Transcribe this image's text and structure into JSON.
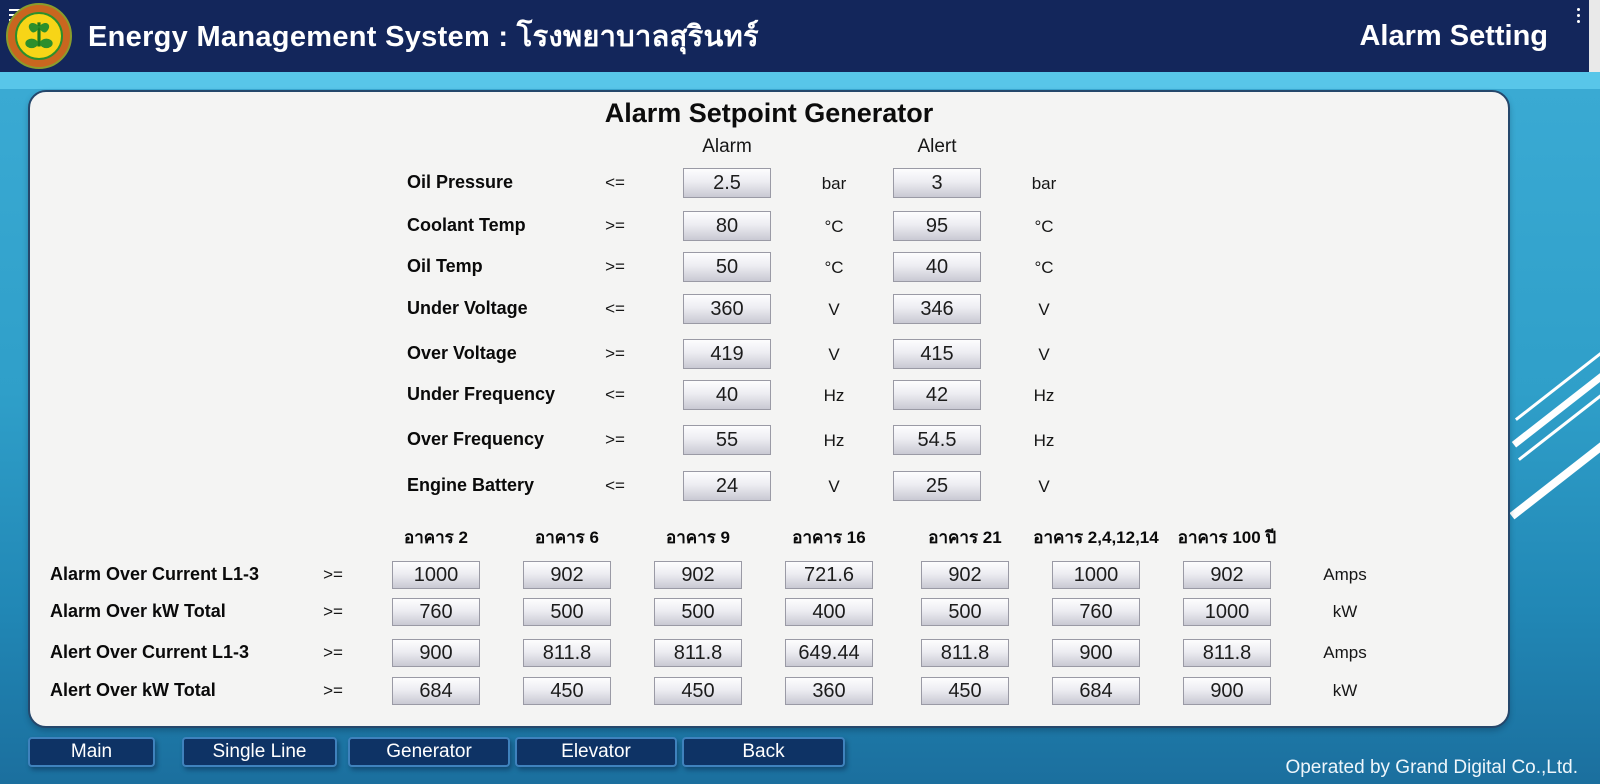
{
  "header": {
    "title": "Energy Management System : โรงพยาบาลสุรินทร์",
    "page_label": "Alarm Setting"
  },
  "panel": {
    "title": "Alarm Setpoint Generator",
    "columns": {
      "alarm": "Alarm",
      "alert": "Alert"
    },
    "setpoints": [
      {
        "label": "Oil Pressure",
        "op": "<=",
        "alarm": "2.5",
        "alarm_unit": "bar",
        "alert": "3",
        "alert_unit": "bar"
      },
      {
        "label": "Coolant Temp",
        "op": ">=",
        "alarm": "80",
        "alarm_unit": "°C",
        "alert": "95",
        "alert_unit": "°C"
      },
      {
        "label": "Oil Temp",
        "op": ">=",
        "alarm": "50",
        "alarm_unit": "°C",
        "alert": "40",
        "alert_unit": "°C"
      },
      {
        "label": "Under Voltage",
        "op": "<=",
        "alarm": "360",
        "alarm_unit": "V",
        "alert": "346",
        "alert_unit": "V"
      },
      {
        "label": "Over Voltage",
        "op": ">=",
        "alarm": "419",
        "alarm_unit": "V",
        "alert": "415",
        "alert_unit": "V"
      },
      {
        "label": "Under Frequency",
        "op": "<=",
        "alarm": "40",
        "alarm_unit": "Hz",
        "alert": "42",
        "alert_unit": "Hz"
      },
      {
        "label": "Over Frequency",
        "op": ">=",
        "alarm": "55",
        "alarm_unit": "Hz",
        "alert": "54.5",
        "alert_unit": "Hz"
      },
      {
        "label": "Engine Battery",
        "op": "<=",
        "alarm": "24",
        "alarm_unit": "V",
        "alert": "25",
        "alert_unit": "V"
      }
    ],
    "buildings": [
      "อาคาร 2",
      "อาคาร 6",
      "อาคาร 9",
      "อาคาร 16",
      "อาคาร 21",
      "อาคาร 2,4,12,14",
      "อาคาร 100 ปี"
    ],
    "building_rows": [
      {
        "label": "Alarm Over Current L1-3",
        "op": ">=",
        "values": [
          "1000",
          "902",
          "902",
          "721.6",
          "902",
          "1000",
          "902"
        ],
        "unit": "Amps"
      },
      {
        "label": "Alarm Over kW Total",
        "op": ">=",
        "values": [
          "760",
          "500",
          "500",
          "400",
          "500",
          "760",
          "1000"
        ],
        "unit": "kW"
      },
      {
        "label": "Alert Over Current L1-3",
        "op": ">=",
        "values": [
          "900",
          "811.8",
          "811.8",
          "649.44",
          "811.8",
          "900",
          "811.8"
        ],
        "unit": "Amps"
      },
      {
        "label": "Alert Over kW Total",
        "op": ">=",
        "values": [
          "684",
          "450",
          "450",
          "360",
          "450",
          "684",
          "900"
        ],
        "unit": "kW"
      }
    ]
  },
  "nav": {
    "buttons": [
      "Main",
      "Single Line",
      "Generator",
      "Elevator",
      "Back"
    ]
  },
  "footer": {
    "credit": "Operated by Grand Digital Co.,Ltd."
  },
  "colors": {
    "header_navy": "#13265b",
    "strip_blue": "#58c6e9",
    "body_teal": "#2f9fc9",
    "panel_bg": "#f4f4f3",
    "button_navy": "#0e3365",
    "button_border": "#3f82bd"
  }
}
